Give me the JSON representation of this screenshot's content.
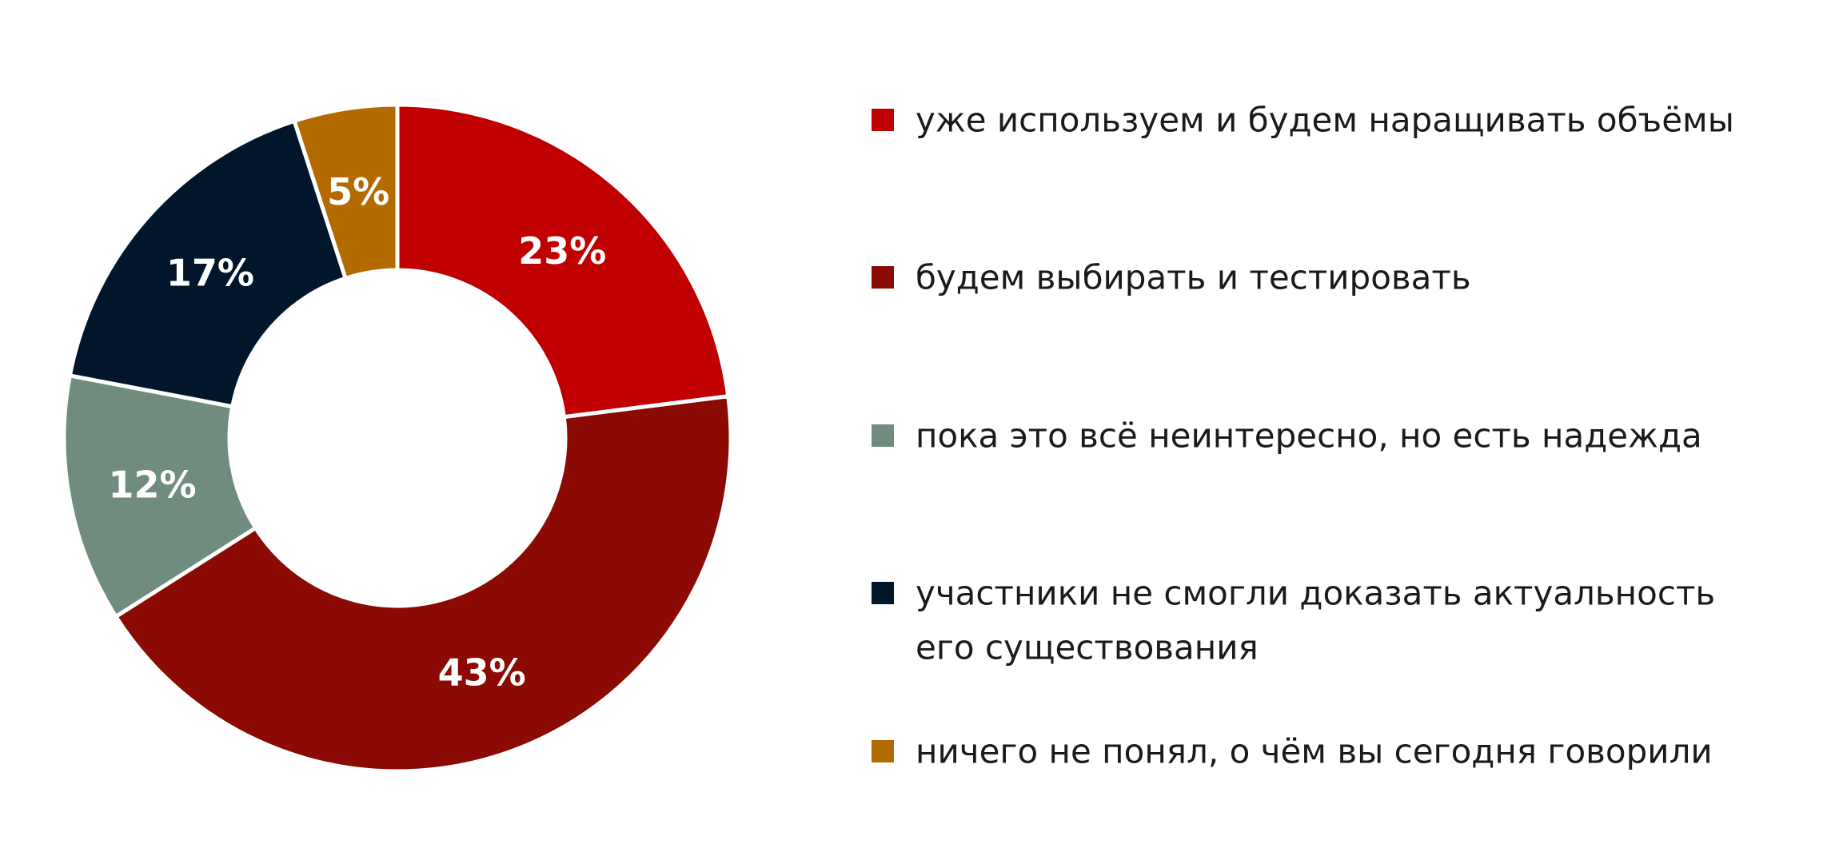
{
  "chart_data": {
    "type": "pie",
    "variant": "donut",
    "categories": [
      "уже используем и будем наращивать объёмы",
      "будем выбирать и тестировать",
      "пока это всё неинтересно, но есть надежда",
      "участники не смогли доказать актуальность его существования",
      "ничего не понял, о чём вы сегодня говорили"
    ],
    "legend_lines": [
      [
        "уже используем и будем наращивать объёмы"
      ],
      [
        "будем выбирать и тестировать"
      ],
      [
        "пока это всё неинтересно, но есть надежда"
      ],
      [
        "участники не смогли доказать актуальность",
        "его существования"
      ],
      [
        "ничего не понял, о чём вы сегодня говорили"
      ]
    ],
    "values": [
      23,
      43,
      12,
      17,
      5
    ],
    "data_labels": [
      "23%",
      "43%",
      "12%",
      "17%",
      "5%"
    ],
    "colors": [
      "#c00000",
      "#8b0a03",
      "#6f8c7e",
      "#01162a",
      "#b36b00"
    ],
    "unit": "%",
    "start_angle": "top, clockwise",
    "legend_position": "right",
    "title": ""
  }
}
